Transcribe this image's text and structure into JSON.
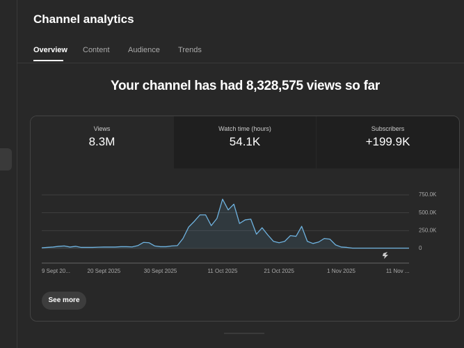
{
  "header": {
    "title": "Channel analytics"
  },
  "tabs": [
    "Overview",
    "Content",
    "Audience",
    "Trends"
  ],
  "headline": "Your channel has had 8,328,575 views so far",
  "metrics": [
    {
      "label": "Views",
      "value": "8.3M"
    },
    {
      "label": "Watch time (hours)",
      "value": "54.1K"
    },
    {
      "label": "Subscribers",
      "value": "+199.9K"
    }
  ],
  "chart_data": {
    "type": "line",
    "categories": [
      "9 Sept 20...",
      null,
      null,
      null,
      null,
      null,
      null,
      null,
      null,
      null,
      null,
      "20 Sept 2025",
      null,
      null,
      null,
      null,
      null,
      null,
      null,
      null,
      null,
      "30 Sept 2025",
      null,
      null,
      null,
      null,
      null,
      null,
      null,
      null,
      null,
      null,
      "11 Oct 2025",
      null,
      null,
      null,
      null,
      null,
      null,
      null,
      null,
      null,
      "21 Oct 2025",
      null,
      null,
      null,
      null,
      null,
      null,
      null,
      null,
      null,
      null,
      "1 Nov 2025",
      null,
      null,
      null,
      null,
      null,
      null,
      null,
      null,
      null,
      "11 Nov ...",
      null,
      null
    ],
    "series": [
      {
        "color": "#6fb3e0",
        "values": [
          10000,
          15000,
          20000,
          30000,
          35000,
          20000,
          30000,
          15000,
          15000,
          15000,
          18000,
          20000,
          20000,
          20000,
          25000,
          25000,
          22000,
          40000,
          85000,
          80000,
          35000,
          25000,
          25000,
          35000,
          40000,
          140000,
          300000,
          380000,
          470000,
          470000,
          320000,
          420000,
          690000,
          540000,
          620000,
          350000,
          400000,
          410000,
          200000,
          290000,
          190000,
          100000,
          80000,
          100000,
          180000,
          170000,
          310000,
          100000,
          70000,
          90000,
          140000,
          130000,
          50000,
          20000,
          15000,
          5000,
          5000,
          5000,
          5000,
          5000,
          5000,
          5000,
          5000,
          5000,
          5000,
          5000
        ]
      }
    ],
    "ylim": [
      0,
      750000
    ],
    "yticks": [
      0,
      {
        "value": 250000,
        "label": "250.0K"
      },
      {
        "value": 500000,
        "label": "500.0K"
      },
      {
        "value": 750000,
        "label": "750.0K"
      }
    ],
    "grid": true
  },
  "button": "See more"
}
